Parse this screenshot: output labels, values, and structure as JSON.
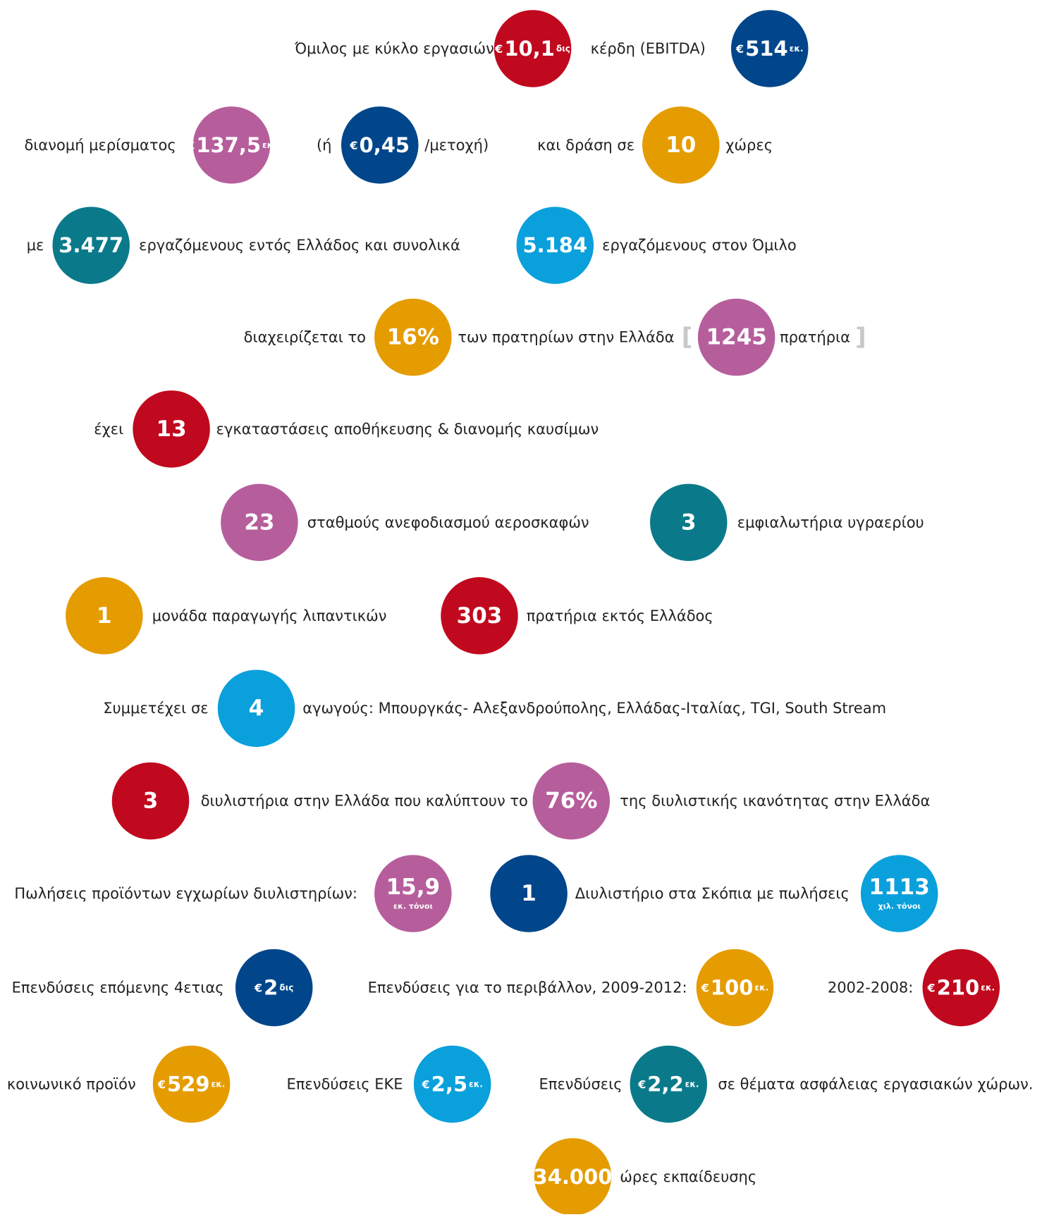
{
  "rows": [
    {
      "items": [
        {
          "text": "Όμιλος με κύκλο εργασιών"
        },
        {
          "prefix": "€",
          "value": "10,1",
          "suffix": "δις",
          "color": "#c0091e"
        },
        {
          "text": "κέρδη  (EBITDA)"
        },
        {
          "prefix": "€",
          "value": "514",
          "suffix": "εκ.",
          "color": "#01468a"
        }
      ]
    },
    {
      "items": [
        {
          "text": "διανομή μερίσματος"
        },
        {
          "prefix": "€",
          "value": "137,5",
          "suffix": "εκ.",
          "color": "#b65e9c"
        },
        {
          "text": "(ή"
        },
        {
          "prefix": "€",
          "value": "0,45",
          "color": "#01468a"
        },
        {
          "text": "/μετοχή)"
        },
        {
          "text": "και δράση σε"
        },
        {
          "value": "10",
          "color": "#e59c00"
        },
        {
          "text": "χώρες"
        }
      ]
    },
    {
      "items": [
        {
          "text": "με"
        },
        {
          "value": "3.477",
          "color": "#0a7a8a"
        },
        {
          "text": "εργαζόμενους εντός Ελλάδος και συνολικά"
        },
        {
          "value": "5.184",
          "color": "#0aa0dc"
        },
        {
          "text": "εργαζόμενους στον Όμιλο"
        }
      ]
    },
    {
      "items": [
        {
          "text": "διαχειρίζεται το"
        },
        {
          "value": "16%",
          "color": "#e59c00"
        },
        {
          "text": "των πρατηρίων στην Ελλάδα"
        },
        {
          "text": "["
        },
        {
          "value": "1245",
          "color": "#b65e9c"
        },
        {
          "text": "πρατήρια"
        },
        {
          "text": "]"
        }
      ]
    },
    {
      "items": [
        {
          "text": "έχει"
        },
        {
          "value": "13",
          "color": "#c0091e"
        },
        {
          "text": "εγκαταστάσεις αποθήκευσης & διανομής καυσίμων"
        }
      ]
    },
    {
      "items": [
        {
          "value": "23",
          "color": "#b65e9c"
        },
        {
          "text": "σταθμούς ανεφοδιασμού αεροσκαφών"
        },
        {
          "value": "3",
          "color": "#0a7a8a"
        },
        {
          "text": "εμφιαλωτήρια  υγραερίου"
        }
      ]
    },
    {
      "items": [
        {
          "value": "1",
          "color": "#e59c00"
        },
        {
          "text": "μονάδα παραγωγής λιπαντικών"
        },
        {
          "value": "303",
          "color": "#c0091e"
        },
        {
          "text": "πρατήρια εκτός Ελλάδος"
        }
      ]
    },
    {
      "items": [
        {
          "text": "Συμμετέχει σε"
        },
        {
          "value": "4",
          "color": "#0aa0dc"
        },
        {
          "text": "αγωγούς: Μπουργκάς- Αλεξανδρούπολης, Ελλάδας-Ιταλίας, TGI, South Stream"
        }
      ]
    },
    {
      "items": [
        {
          "value": "3",
          "color": "#c0091e"
        },
        {
          "text": "διυλιστήρια στην Ελλάδα που καλύπτουν το"
        },
        {
          "value": "76%",
          "color": "#b65e9c"
        },
        {
          "text": "της διυλιστικής ικανότητας στην Ελλάδα"
        }
      ]
    },
    {
      "items": [
        {
          "text": "Πωλήσεις προϊόντων εγχωρίων διυλιστηρίων:"
        },
        {
          "value": "15,9",
          "note": "εκ. τόνοι",
          "color": "#b65e9c"
        },
        {
          "value": "1",
          "color": "#01468a"
        },
        {
          "text": "Διυλιστήριο στα Σκόπια με πωλήσεις"
        },
        {
          "value": "1113",
          "note": "χιλ. τόνοι",
          "color": "#0aa0dc"
        }
      ]
    },
    {
      "items": [
        {
          "text": "Επενδύσεις επόμενης 4ετιας"
        },
        {
          "prefix": "€",
          "value": "2",
          "suffix": "δις",
          "color": "#01468a"
        },
        {
          "text": "Επενδύσεις για το περιβάλλον, 2009-2012:"
        },
        {
          "prefix": "€",
          "value": "100",
          "suffix": "εκ.",
          "color": "#e59c00"
        },
        {
          "text": "2002-2008:"
        },
        {
          "prefix": "€",
          "value": "210",
          "suffix": "εκ.",
          "color": "#c0091e"
        }
      ]
    },
    {
      "items": [
        {
          "text": "κοινωνικό προϊόν"
        },
        {
          "prefix": "€",
          "value": "529",
          "suffix": "εκ.",
          "color": "#e59c00"
        },
        {
          "text": "Επενδύσεις ΕΚΕ"
        },
        {
          "prefix": "€",
          "value": "2,5",
          "suffix": "εκ.",
          "color": "#0aa0dc"
        },
        {
          "text": "Επενδύσεις"
        },
        {
          "prefix": "€",
          "value": "2,2",
          "suffix": "εκ.",
          "color": "#0a7a8a"
        },
        {
          "text": "σε θέματα ασφάλειας εργασιακών χώρων."
        }
      ]
    },
    {
      "items": [
        {
          "value": "34.000",
          "color": "#e59c00"
        },
        {
          "text": "ώρες εκπαίδευσης"
        }
      ]
    }
  ]
}
